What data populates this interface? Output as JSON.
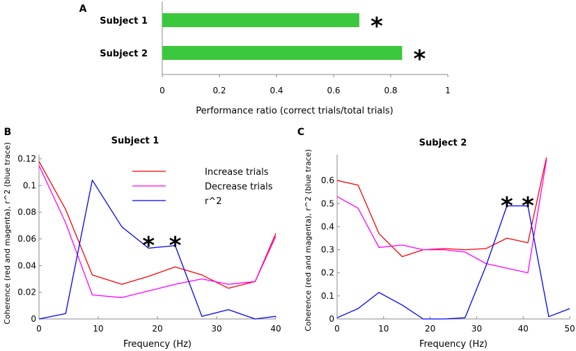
{
  "chart_data": [
    {
      "panel": "A",
      "type": "bar",
      "orientation": "horizontal",
      "title": "",
      "categories": [
        "Subject 1",
        "Subject 2"
      ],
      "values": [
        0.69,
        0.84
      ],
      "annotations": [
        "*",
        "*"
      ],
      "xlabel": "Performance ratio (correct trials/total trials)",
      "xlim": [
        0,
        1
      ],
      "xticks": [
        0,
        0.2,
        0.4,
        0.6,
        0.8,
        1
      ],
      "xtick_labels": [
        "0",
        "0.2",
        "0.4",
        "0.6",
        "0.8",
        "1"
      ],
      "bar_color": "#3cc83c"
    },
    {
      "panel": "B",
      "type": "line",
      "title": "Subject 1",
      "xlabel": "Frequency (Hz)",
      "ylabel": "Coherence (red and magenta), r^2 (blue trace)",
      "xlim": [
        0,
        40
      ],
      "ylim": [
        0,
        0.12
      ],
      "xticks": [
        0,
        10,
        20,
        30,
        40
      ],
      "xtick_labels": [
        "0",
        "10",
        "20",
        "30",
        "40"
      ],
      "yticks": [
        0,
        0.02,
        0.04,
        0.06,
        0.08,
        0.1,
        0.12
      ],
      "ytick_labels": [
        "0",
        "0.02",
        "0.04",
        "0.06",
        "0.08",
        "0.1",
        "0.12"
      ],
      "series": [
        {
          "name": "Increase trials",
          "color": "#ff0000",
          "x": [
            0,
            4.5,
            9,
            14,
            18.5,
            23,
            27.5,
            32,
            36.5,
            40
          ],
          "y": [
            0.118,
            0.082,
            0.033,
            0.026,
            0.032,
            0.039,
            0.033,
            0.023,
            0.028,
            0.064
          ]
        },
        {
          "name": "Decrease trials",
          "color": "#ff00ff",
          "x": [
            0,
            4.5,
            9,
            14,
            18.5,
            23,
            27.5,
            32,
            36.5,
            40
          ],
          "y": [
            0.115,
            0.072,
            0.018,
            0.016,
            0.021,
            0.026,
            0.03,
            0.026,
            0.028,
            0.062
          ]
        },
        {
          "name": "r^2",
          "color": "#0000ff",
          "x": [
            0,
            4.5,
            9,
            14,
            18.5,
            23,
            27.5,
            32,
            36.5,
            40
          ],
          "y": [
            0.0,
            0.004,
            0.104,
            0.069,
            0.053,
            0.055,
            0.002,
            0.007,
            0.0,
            0.002
          ]
        }
      ],
      "legend": [
        "Increase trials",
        "Decrease trials",
        "r^2"
      ],
      "legend_position": "top-right",
      "annotations": [
        {
          "text": "*",
          "x": 18.5
        },
        {
          "text": "*",
          "x": 23
        }
      ]
    },
    {
      "panel": "C",
      "type": "line",
      "title": "Subject 2",
      "xlabel": "Frequency (Hz)",
      "ylabel": "Coherence (red and magenta), r^2 (blue trace)",
      "xlim": [
        0,
        50
      ],
      "ylim": [
        0,
        0.7
      ],
      "xticks": [
        0,
        10,
        20,
        30,
        40,
        50
      ],
      "xtick_labels": [
        "0",
        "10",
        "20",
        "30",
        "40",
        "50"
      ],
      "yticks": [
        0,
        0.1,
        0.2,
        0.3,
        0.4,
        0.5,
        0.6
      ],
      "ytick_labels": [
        "0",
        "0.1",
        "0.2",
        "0.3",
        "0.4",
        "0.5",
        "0.6"
      ],
      "series": [
        {
          "name": "Increase trials",
          "color": "#ff0000",
          "x": [
            0,
            4.5,
            9,
            14,
            18.5,
            23,
            27.5,
            32,
            36.5,
            41,
            45
          ],
          "y": [
            0.6,
            0.58,
            0.37,
            0.27,
            0.3,
            0.305,
            0.3,
            0.305,
            0.35,
            0.33,
            0.7
          ]
        },
        {
          "name": "Decrease trials",
          "color": "#ff00ff",
          "x": [
            0,
            4.5,
            9,
            14,
            18.5,
            23,
            27.5,
            32,
            36.5,
            41,
            45
          ],
          "y": [
            0.53,
            0.48,
            0.31,
            0.32,
            0.3,
            0.3,
            0.29,
            0.24,
            0.22,
            0.2,
            0.69
          ]
        },
        {
          "name": "r^2",
          "color": "#0000ff",
          "x": [
            0,
            4.5,
            9,
            14,
            18.5,
            23,
            27.5,
            32,
            36.5,
            41,
            45.5,
            50
          ],
          "y": [
            0.005,
            0.045,
            0.115,
            0.06,
            0.0,
            0.0,
            0.005,
            0.23,
            0.49,
            0.49,
            0.01,
            0.045
          ]
        }
      ],
      "annotations": [
        {
          "text": "*",
          "x": 36.5
        },
        {
          "text": "*",
          "x": 41
        }
      ]
    }
  ]
}
